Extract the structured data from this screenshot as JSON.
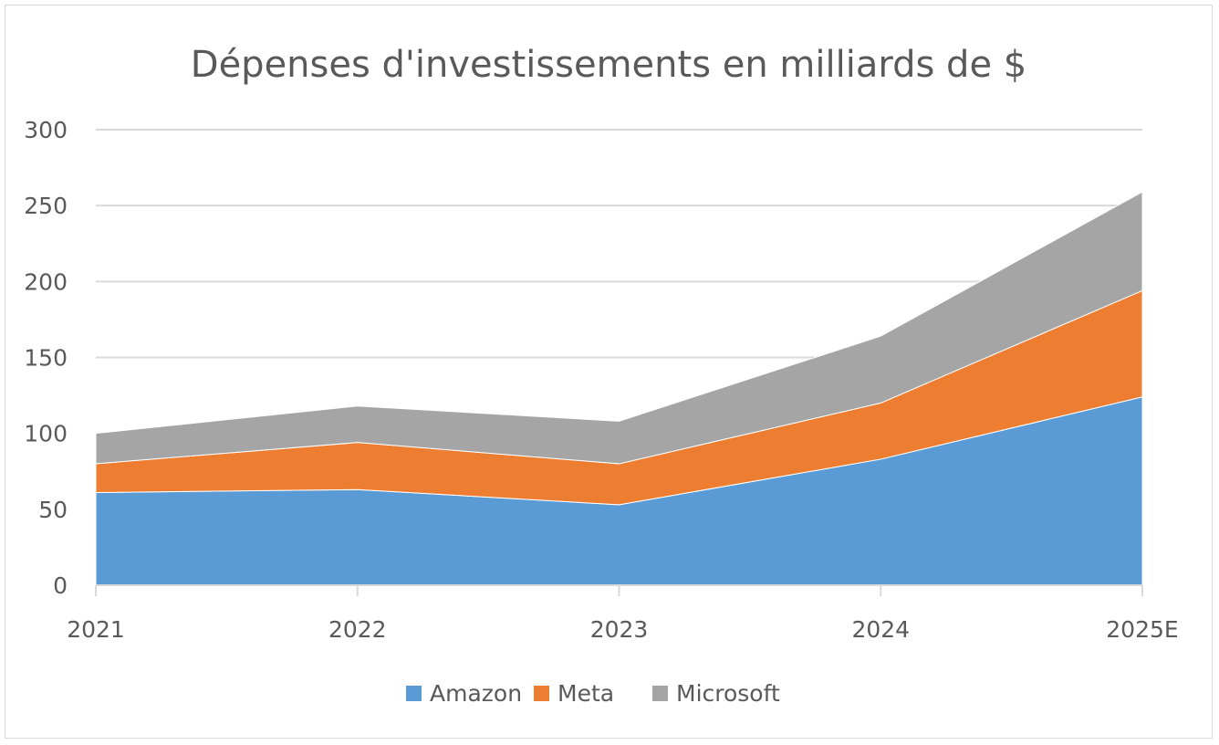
{
  "chart_data": {
    "type": "area",
    "stacked": true,
    "title": "Dépenses d'investissements en milliards de $",
    "xlabel": "",
    "ylabel": "",
    "categories": [
      "2021",
      "2022",
      "2023",
      "2024",
      "2025E"
    ],
    "series": [
      {
        "name": "Amazon",
        "color": "#5b9bd5",
        "values": [
          61,
          63,
          53,
          83,
          124
        ]
      },
      {
        "name": "Meta",
        "color": "#ed7d31",
        "values": [
          19,
          31,
          27,
          37,
          70
        ]
      },
      {
        "name": "Microsoft",
        "color": "#a5a5a5",
        "values": [
          20,
          24,
          28,
          44,
          65
        ]
      }
    ],
    "ylim": [
      0,
      300
    ],
    "yticks": [
      "0",
      "50",
      "100",
      "150",
      "200",
      "250",
      "300"
    ],
    "grid": true,
    "legend": "bottom"
  }
}
